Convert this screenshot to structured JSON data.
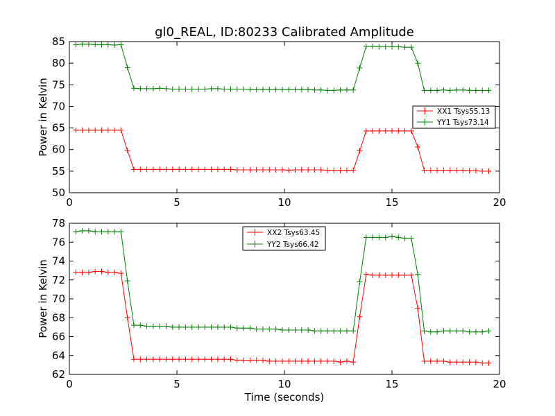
{
  "chart_data": [
    {
      "type": "line",
      "title": "gl0_REAL, ID:80233 Calibrated Amplitude",
      "xlabel": "",
      "ylabel": "Power in Kelvin",
      "xlim": [
        0,
        20
      ],
      "ylim": [
        50,
        85
      ],
      "xticks": [
        0,
        5,
        10,
        15,
        20
      ],
      "yticks": [
        50,
        55,
        60,
        65,
        70,
        75,
        80,
        85
      ],
      "grid": false,
      "legend_position": "center-right",
      "x": [
        0.3,
        0.6,
        0.9,
        1.2,
        1.5,
        1.8,
        2.1,
        2.4,
        2.7,
        3.0,
        3.3,
        3.6,
        3.9,
        4.2,
        4.5,
        4.8,
        5.1,
        5.4,
        5.7,
        6.0,
        6.3,
        6.6,
        6.9,
        7.2,
        7.5,
        7.8,
        8.1,
        8.4,
        8.7,
        9.0,
        9.3,
        9.6,
        9.9,
        10.2,
        10.5,
        10.8,
        11.1,
        11.4,
        11.7,
        12.0,
        12.3,
        12.6,
        12.9,
        13.2,
        13.5,
        13.8,
        14.1,
        14.4,
        14.7,
        15.0,
        15.3,
        15.6,
        15.9,
        16.2,
        16.5,
        16.8,
        17.1,
        17.4,
        17.7,
        18.0,
        18.3,
        18.6,
        18.9,
        19.2,
        19.5
      ],
      "series": [
        {
          "name": "XX1 Tsys55.13",
          "color": "#ff0000",
          "values": [
            64.5,
            64.5,
            64.5,
            64.5,
            64.5,
            64.5,
            64.5,
            64.5,
            59.8,
            55.4,
            55.4,
            55.4,
            55.4,
            55.4,
            55.4,
            55.4,
            55.4,
            55.4,
            55.4,
            55.4,
            55.4,
            55.4,
            55.4,
            55.4,
            55.4,
            55.3,
            55.3,
            55.3,
            55.3,
            55.3,
            55.3,
            55.3,
            55.3,
            55.2,
            55.3,
            55.3,
            55.3,
            55.3,
            55.3,
            55.2,
            55.2,
            55.2,
            55.2,
            55.2,
            59.7,
            64.3,
            64.3,
            64.3,
            64.3,
            64.3,
            64.3,
            64.3,
            64.3,
            60.6,
            55.2,
            55.2,
            55.2,
            55.2,
            55.2,
            55.2,
            55.2,
            55.1,
            55.1,
            55.0,
            55.0
          ]
        },
        {
          "name": "YY1 Tsys73.14",
          "color": "#008000",
          "values": [
            84.3,
            84.4,
            84.4,
            84.3,
            84.3,
            84.3,
            84.2,
            84.3,
            79.0,
            74.2,
            74.1,
            74.1,
            74.1,
            74.2,
            74.1,
            74.0,
            74.0,
            74.0,
            74.0,
            74.0,
            74.0,
            74.1,
            74.1,
            74.0,
            74.0,
            74.0,
            74.0,
            73.9,
            73.9,
            73.9,
            73.9,
            73.9,
            73.9,
            73.9,
            73.9,
            73.9,
            73.9,
            73.8,
            73.8,
            73.7,
            73.7,
            73.8,
            73.8,
            73.8,
            78.9,
            83.9,
            83.9,
            83.8,
            83.8,
            83.8,
            83.8,
            83.7,
            83.7,
            80.0,
            73.7,
            73.7,
            73.7,
            73.8,
            73.7,
            73.8,
            73.8,
            73.7,
            73.7,
            73.7,
            73.7
          ]
        }
      ]
    },
    {
      "type": "line",
      "title": "",
      "xlabel": "Time (seconds)",
      "ylabel": "Power in Kelvin",
      "xlim": [
        0,
        20
      ],
      "ylim": [
        62,
        78
      ],
      "xticks": [
        0,
        5,
        10,
        15,
        20
      ],
      "yticks": [
        62,
        64,
        66,
        68,
        70,
        72,
        74,
        76,
        78
      ],
      "grid": false,
      "legend_position": "upper-center",
      "x": [
        0.3,
        0.6,
        0.9,
        1.2,
        1.5,
        1.8,
        2.1,
        2.4,
        2.7,
        3.0,
        3.3,
        3.6,
        3.9,
        4.2,
        4.5,
        4.8,
        5.1,
        5.4,
        5.7,
        6.0,
        6.3,
        6.6,
        6.9,
        7.2,
        7.5,
        7.8,
        8.1,
        8.4,
        8.7,
        9.0,
        9.3,
        9.6,
        9.9,
        10.2,
        10.5,
        10.8,
        11.1,
        11.4,
        11.7,
        12.0,
        12.3,
        12.6,
        12.9,
        13.2,
        13.5,
        13.8,
        14.1,
        14.4,
        14.7,
        15.0,
        15.3,
        15.6,
        15.9,
        16.2,
        16.5,
        16.8,
        17.1,
        17.4,
        17.7,
        18.0,
        18.3,
        18.6,
        18.9,
        19.2,
        19.5
      ],
      "series": [
        {
          "name": "XX2 Tsys63.45",
          "color": "#ff0000",
          "values": [
            72.8,
            72.8,
            72.8,
            72.9,
            72.9,
            72.8,
            72.8,
            72.7,
            68.0,
            63.6,
            63.6,
            63.6,
            63.6,
            63.6,
            63.6,
            63.6,
            63.6,
            63.6,
            63.6,
            63.6,
            63.6,
            63.6,
            63.6,
            63.6,
            63.6,
            63.5,
            63.5,
            63.5,
            63.5,
            63.5,
            63.4,
            63.4,
            63.4,
            63.4,
            63.4,
            63.4,
            63.4,
            63.4,
            63.4,
            63.4,
            63.4,
            63.3,
            63.4,
            63.3,
            68.1,
            72.6,
            72.5,
            72.5,
            72.5,
            72.5,
            72.5,
            72.5,
            72.5,
            69.0,
            63.4,
            63.4,
            63.4,
            63.4,
            63.3,
            63.3,
            63.3,
            63.3,
            63.3,
            63.2,
            63.2
          ]
        },
        {
          "name": "YY2 Tsys66.42",
          "color": "#008000",
          "values": [
            77.1,
            77.2,
            77.2,
            77.1,
            77.1,
            77.1,
            77.1,
            77.1,
            71.9,
            67.2,
            67.2,
            67.1,
            67.1,
            67.1,
            67.1,
            67.0,
            67.0,
            67.0,
            67.0,
            67.0,
            67.0,
            67.0,
            67.0,
            67.0,
            67.0,
            66.9,
            66.9,
            66.9,
            66.8,
            66.8,
            66.8,
            66.8,
            66.7,
            66.7,
            66.7,
            66.7,
            66.7,
            66.6,
            66.6,
            66.6,
            66.6,
            66.6,
            66.6,
            66.6,
            71.8,
            76.5,
            76.5,
            76.5,
            76.5,
            76.6,
            76.5,
            76.4,
            76.4,
            72.6,
            66.6,
            66.5,
            66.5,
            66.6,
            66.6,
            66.6,
            66.6,
            66.5,
            66.5,
            66.5,
            66.6
          ]
        }
      ]
    }
  ]
}
